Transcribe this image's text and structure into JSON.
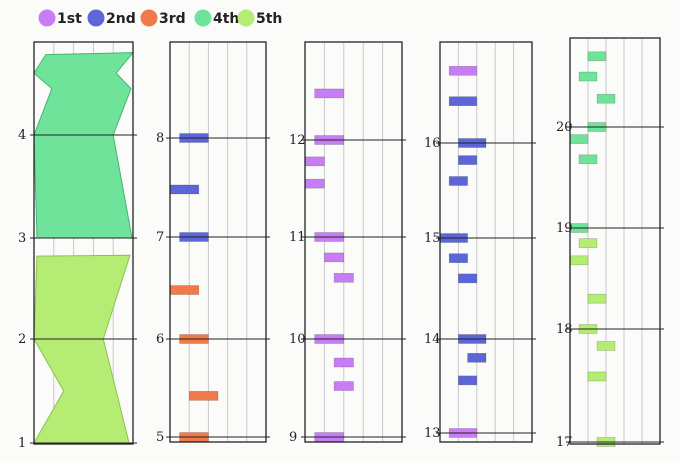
{
  "legend": [
    {
      "label": "1st",
      "color": "#c77df5"
    },
    {
      "label": "2nd",
      "color": "#5d66d9"
    },
    {
      "label": "3rd",
      "color": "#f07a4a"
    },
    {
      "label": "4th",
      "color": "#6fe39a"
    },
    {
      "label": "5th",
      "color": "#b5ec74"
    }
  ],
  "chart_data": {
    "type": "bar",
    "title": "",
    "xlabel": "",
    "ylabel": "",
    "grid": true,
    "legend_placement": "top-left",
    "colors": {
      "1st": "#c77df5",
      "2nd": "#5d66d9",
      "3rd": "#f07a4a",
      "4th": "#6fe39a",
      "5th": "#b5ec74"
    },
    "series": [
      {
        "name": "1st"
      },
      {
        "name": "2nd"
      },
      {
        "name": "3rd"
      },
      {
        "name": "4th"
      },
      {
        "name": "5th"
      }
    ],
    "panels": [
      {
        "ticks": [
          "1",
          "2",
          "3",
          "4"
        ],
        "ylim": [
          0.96,
          4.84
        ],
        "shapes": [
          {
            "series": "5th",
            "from": 1,
            "to": 2.83
          },
          {
            "series": "4th",
            "from": 3,
            "to": 4.8
          }
        ]
      },
      {
        "ticks": [
          "5",
          "6",
          "7",
          "8"
        ],
        "ylim": [
          4.96,
          8.96
        ],
        "bars": [
          {
            "series": "3rd",
            "y": 5.0,
            "x": [
              0.1,
              0.4
            ]
          },
          {
            "series": "3rd",
            "y": 5.42,
            "x": [
              0.2,
              0.5
            ]
          },
          {
            "series": "3rd",
            "y": 6.0,
            "x": [
              0.1,
              0.4
            ]
          },
          {
            "series": "3rd",
            "y": 6.48,
            "x": [
              0.0,
              0.3
            ]
          },
          {
            "series": "2nd",
            "y": 7.0,
            "x": [
              0.1,
              0.4
            ]
          },
          {
            "series": "2nd",
            "y": 7.48,
            "x": [
              0.0,
              0.3
            ]
          },
          {
            "series": "2nd",
            "y": 8.0,
            "x": [
              0.1,
              0.4
            ]
          }
        ]
      },
      {
        "ticks": [
          "9",
          "10",
          "11",
          "12"
        ],
        "ylim": [
          8.96,
          12.96
        ],
        "bars": [
          {
            "series": "1st",
            "y": 9.0,
            "x": [
              0.1,
              0.4
            ]
          },
          {
            "series": "1st",
            "y": 9.52,
            "x": [
              0.3,
              0.5
            ]
          },
          {
            "series": "1st",
            "y": 9.76,
            "x": [
              0.3,
              0.5
            ]
          },
          {
            "series": "1st",
            "y": 10.0,
            "x": [
              0.1,
              0.4
            ]
          },
          {
            "series": "1st",
            "y": 10.6,
            "x": [
              0.3,
              0.5
            ]
          },
          {
            "series": "1st",
            "y": 10.8,
            "x": [
              0.2,
              0.4
            ]
          },
          {
            "series": "1st",
            "y": 11.0,
            "x": [
              0.1,
              0.4
            ]
          },
          {
            "series": "1st",
            "y": 11.55,
            "x": [
              0.0,
              0.2
            ]
          },
          {
            "series": "1st",
            "y": 11.78,
            "x": [
              0.0,
              0.2
            ]
          },
          {
            "series": "1st",
            "y": 12.0,
            "x": [
              0.1,
              0.4
            ]
          },
          {
            "series": "1st",
            "y": 12.48,
            "x": [
              0.1,
              0.4
            ]
          }
        ]
      },
      {
        "ticks": [
          "13",
          "14",
          "15",
          "16"
        ],
        "ylim": [
          12.96,
          16.96
        ],
        "bars": [
          {
            "series": "1st",
            "y": 13.0,
            "x": [
              0.1,
              0.4
            ]
          },
          {
            "series": "2nd",
            "y": 13.56,
            "x": [
              0.2,
              0.4
            ]
          },
          {
            "series": "2nd",
            "y": 13.8,
            "x": [
              0.3,
              0.5
            ]
          },
          {
            "series": "2nd",
            "y": 14.0,
            "x": [
              0.2,
              0.5
            ]
          },
          {
            "series": "2nd",
            "y": 14.6,
            "x": [
              0.2,
              0.4
            ]
          },
          {
            "series": "2nd",
            "y": 14.8,
            "x": [
              0.1,
              0.3
            ]
          },
          {
            "series": "2nd",
            "y": 15.0,
            "x": [
              0.0,
              0.3
            ]
          },
          {
            "series": "2nd",
            "y": 15.6,
            "x": [
              0.1,
              0.3
            ]
          },
          {
            "series": "2nd",
            "y": 15.82,
            "x": [
              0.2,
              0.4
            ]
          },
          {
            "series": "2nd",
            "y": 16.0,
            "x": [
              0.2,
              0.5
            ]
          },
          {
            "series": "2nd",
            "y": 16.44,
            "x": [
              0.1,
              0.4
            ]
          },
          {
            "series": "1st",
            "y": 16.76,
            "x": [
              0.1,
              0.4
            ]
          }
        ]
      },
      {
        "ticks": [
          "17",
          "18",
          "19",
          "20"
        ],
        "ylim": [
          16.96,
          20.84
        ],
        "bars": [
          {
            "series": "5th",
            "y": 17.0,
            "x": [
              0.3,
              0.5
            ]
          },
          {
            "series": "5th",
            "y": 17.58,
            "x": [
              0.2,
              0.4
            ]
          },
          {
            "series": "5th",
            "y": 17.85,
            "x": [
              0.3,
              0.5
            ]
          },
          {
            "series": "5th",
            "y": 18.0,
            "x": [
              0.1,
              0.3
            ]
          },
          {
            "series": "5th",
            "y": 18.3,
            "x": [
              0.2,
              0.4
            ]
          },
          {
            "series": "5th",
            "y": 18.68,
            "x": [
              0.0,
              0.2
            ]
          },
          {
            "series": "5th",
            "y": 18.85,
            "x": [
              0.1,
              0.3
            ]
          },
          {
            "series": "4th",
            "y": 19.0,
            "x": [
              0.0,
              0.2
            ]
          },
          {
            "series": "4th",
            "y": 19.68,
            "x": [
              0.1,
              0.3
            ]
          },
          {
            "series": "4th",
            "y": 19.88,
            "x": [
              0.0,
              0.2
            ]
          },
          {
            "series": "4th",
            "y": 20.0,
            "x": [
              0.2,
              0.4
            ]
          },
          {
            "series": "4th",
            "y": 20.28,
            "x": [
              0.3,
              0.5
            ]
          },
          {
            "series": "4th",
            "y": 20.5,
            "x": [
              0.1,
              0.3
            ]
          },
          {
            "series": "4th",
            "y": 20.7,
            "x": [
              0.2,
              0.4
            ]
          }
        ]
      }
    ]
  }
}
